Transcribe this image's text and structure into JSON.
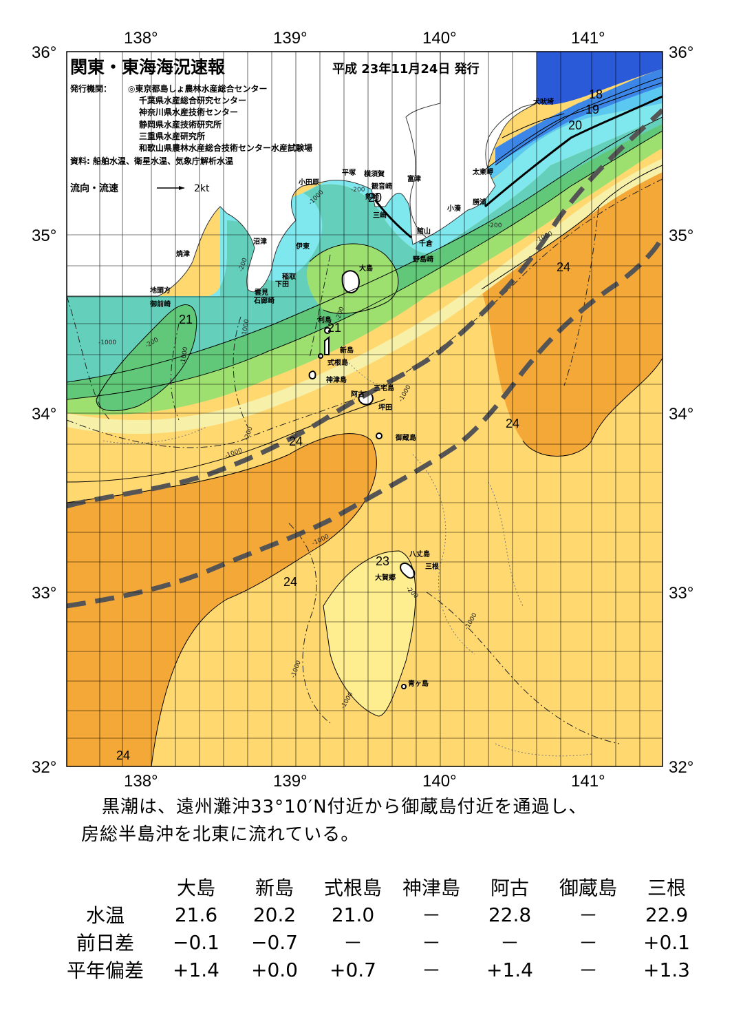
{
  "title": "関東・東海海況速報",
  "issue_date": "平成 23年11月24日 発行",
  "publishers_label": "発行機関：",
  "publishers": [
    "◎東京都島しょ農林水産総合センター",
    "千葉県水産総合研究センター",
    "神奈川県水産技術センター",
    "静岡県水産技術研究所",
    "三重県水産研究所",
    "和歌山県農林水産総合技術センター水産試験場"
  ],
  "source": "資料: 船舶水温、衛星水温、気象庁解析水温",
  "legend": {
    "label": "流向・流速",
    "scale": "2kt"
  },
  "axes": {
    "lon_ticks": [
      "138°",
      "139°",
      "140°",
      "141°"
    ],
    "lat_ticks": [
      "36°",
      "35°",
      "34°",
      "33°",
      "32°"
    ]
  },
  "place_names": [
    "犬吠埼",
    "太東岬",
    "勝浦",
    "小湊",
    "富津",
    "横須賀",
    "観音崎",
    "平塚",
    "小田原",
    "剱崎",
    "三崎",
    "館山",
    "千倉",
    "野島崎",
    "沼津",
    "伊東",
    "焼津",
    "稲取",
    "下田",
    "雲見",
    "石廊崎",
    "地頭方",
    "御前崎",
    "大島",
    "利島",
    "新島",
    "式根島",
    "神津島",
    "三宅島",
    "阿古",
    "坪田",
    "御蔵島",
    "八丈島",
    "三根",
    "大賀郷",
    "青ヶ島"
  ],
  "isotherm_labels": [
    "18",
    "19",
    "20",
    "20",
    "21",
    "21",
    "23",
    "24",
    "24",
    "24",
    "24",
    "24"
  ],
  "depth_labels": [
    "-200",
    "-1000"
  ],
  "colors": {
    "t18": "#2a5ad8",
    "t19": "#3c86e8",
    "t20": "#5ac8f0",
    "t205": "#7ee8ee",
    "t21": "#64d0bc",
    "t215": "#60c878",
    "t22": "#9ee070",
    "t225": "#f0f0a0",
    "t23": "#ffe080",
    "t235": "#f8c858",
    "t24": "#f4a838",
    "land": "#ffffff",
    "kuroshio": "#555555"
  },
  "summary_lines": [
    "黒潮は、遠州灘沖33°10′N付近から御蔵島付近を通過し、",
    "房総半島沖を北東に流れている。"
  ],
  "table": {
    "stations": [
      "大島",
      "新島",
      "式根島",
      "神津島",
      "阿古",
      "御蔵島",
      "三根"
    ],
    "rows": [
      {
        "label": "水温",
        "values": [
          "21.6",
          "20.2",
          "21.0",
          "－",
          "22.8",
          "－",
          "22.9"
        ]
      },
      {
        "label": "前日差",
        "values": [
          "−0.1",
          "−0.7",
          "－",
          "－",
          "－",
          "－",
          "+0.1"
        ]
      },
      {
        "label": "平年偏差",
        "values": [
          "+1.4",
          "+0.0",
          "+0.7",
          "－",
          "+1.4",
          "－",
          "+1.3"
        ]
      }
    ]
  }
}
